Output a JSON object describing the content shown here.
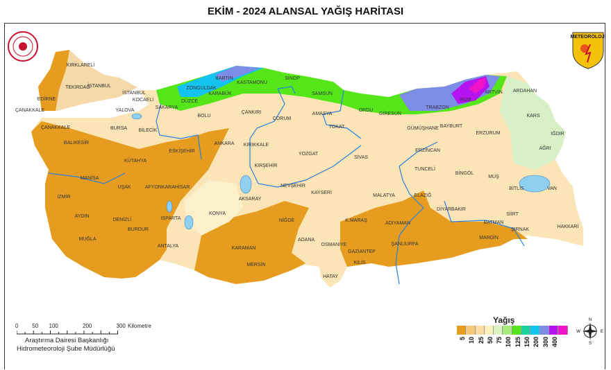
{
  "title": "EKİM - 2024 ALANSAL YAĞIŞ HARİTASI",
  "logos": {
    "right_text": "METEOROLOJİ",
    "left": "seal"
  },
  "legend": {
    "title": "Yağış (mm)",
    "classes": [
      {
        "label": "5",
        "color": "#e69c1e"
      },
      {
        "label": "10",
        "color": "#f5c87a"
      },
      {
        "label": "25",
        "color": "#fbdca5"
      },
      {
        "label": "50",
        "color": "#fcf0bc"
      },
      {
        "label": "75",
        "color": "#daf5c2"
      },
      {
        "label": "100",
        "color": "#a8ea80"
      },
      {
        "label": "125",
        "color": "#55e619"
      },
      {
        "label": "150",
        "color": "#19d2a0"
      },
      {
        "label": "200",
        "color": "#14c3f0"
      },
      {
        "label": "300",
        "color": "#7d8ce6"
      },
      {
        "label": "400",
        "color": "#b414f0"
      },
      {
        "label": "",
        "color": "#f014c8"
      }
    ]
  },
  "compass": {
    "n": "N",
    "s": "S",
    "e": "E",
    "w": "W"
  },
  "scale": {
    "ticks": [
      "0",
      "50",
      "100",
      "200",
      "300"
    ],
    "unit": "Kilometre"
  },
  "credits": [
    "Araştırma Dairesi Başkanlığı",
    "Hidrometeoroloji Şube Müdürlüğü"
  ],
  "cities": [
    "KIRKLARELİ",
    "TEKİRDAĞ",
    "İSTANBUL",
    "İSTANBUL",
    "KOCAELİ",
    "EDİRNE",
    "ÇANAKKALE",
    "YALOVA",
    "SAKARYA",
    "DÜZCE",
    "ZONGULDAK",
    "BARTIN",
    "KARABÜK",
    "KASTAMONU",
    "SİNOP",
    "SAMSUN",
    "BOLU",
    "ÇANKIRI",
    "ÇORUM",
    "AMASYA",
    "TOKAT",
    "ORDU",
    "GİRESUN",
    "TRABZON",
    "RİZE",
    "ARTVİN",
    "ARDAHAN",
    "KARS",
    "IĞDIR",
    "AĞRI",
    "GÜMÜŞHANE",
    "BAYBURT",
    "ERZURUM",
    "ERZİNCAN",
    "TUNCELİ",
    "BİNGÖL",
    "MUŞ",
    "BİTLİS",
    "VAN",
    "ELAZIĞ",
    "DİYARBAKIR",
    "SİİRT",
    "BATMAN",
    "ŞIRNAK",
    "HAKKARİ",
    "MARDİN",
    "ŞANLIURFA",
    "ADIYAMAN",
    "MALATYA",
    "K.MARAŞ",
    "GAZİANTEP",
    "KİLİS",
    "OSMANİYE",
    "ADANA",
    "HATAY",
    "NİĞDE",
    "KAYSERİ",
    "NEVŞEHİR",
    "AKSARAY",
    "KIRŞEHİR",
    "KIRIKKALE",
    "YOZGAT",
    "SİVAS",
    "ANKARA",
    "ESKİŞEHİR",
    "BİLECİK",
    "BURSA",
    "ÇANAKKALE",
    "BALIKESİR",
    "KÜTAHYA",
    "MANİSA",
    "UŞAK",
    "AFYONKARAHİSAR",
    "İZMİR",
    "AYDIN",
    "DENİZLİ",
    "BURDUR",
    "ISPARTA",
    "MUĞLA",
    "ANTALYA",
    "KONYA",
    "KARAMAN",
    "MERSİN"
  ]
}
